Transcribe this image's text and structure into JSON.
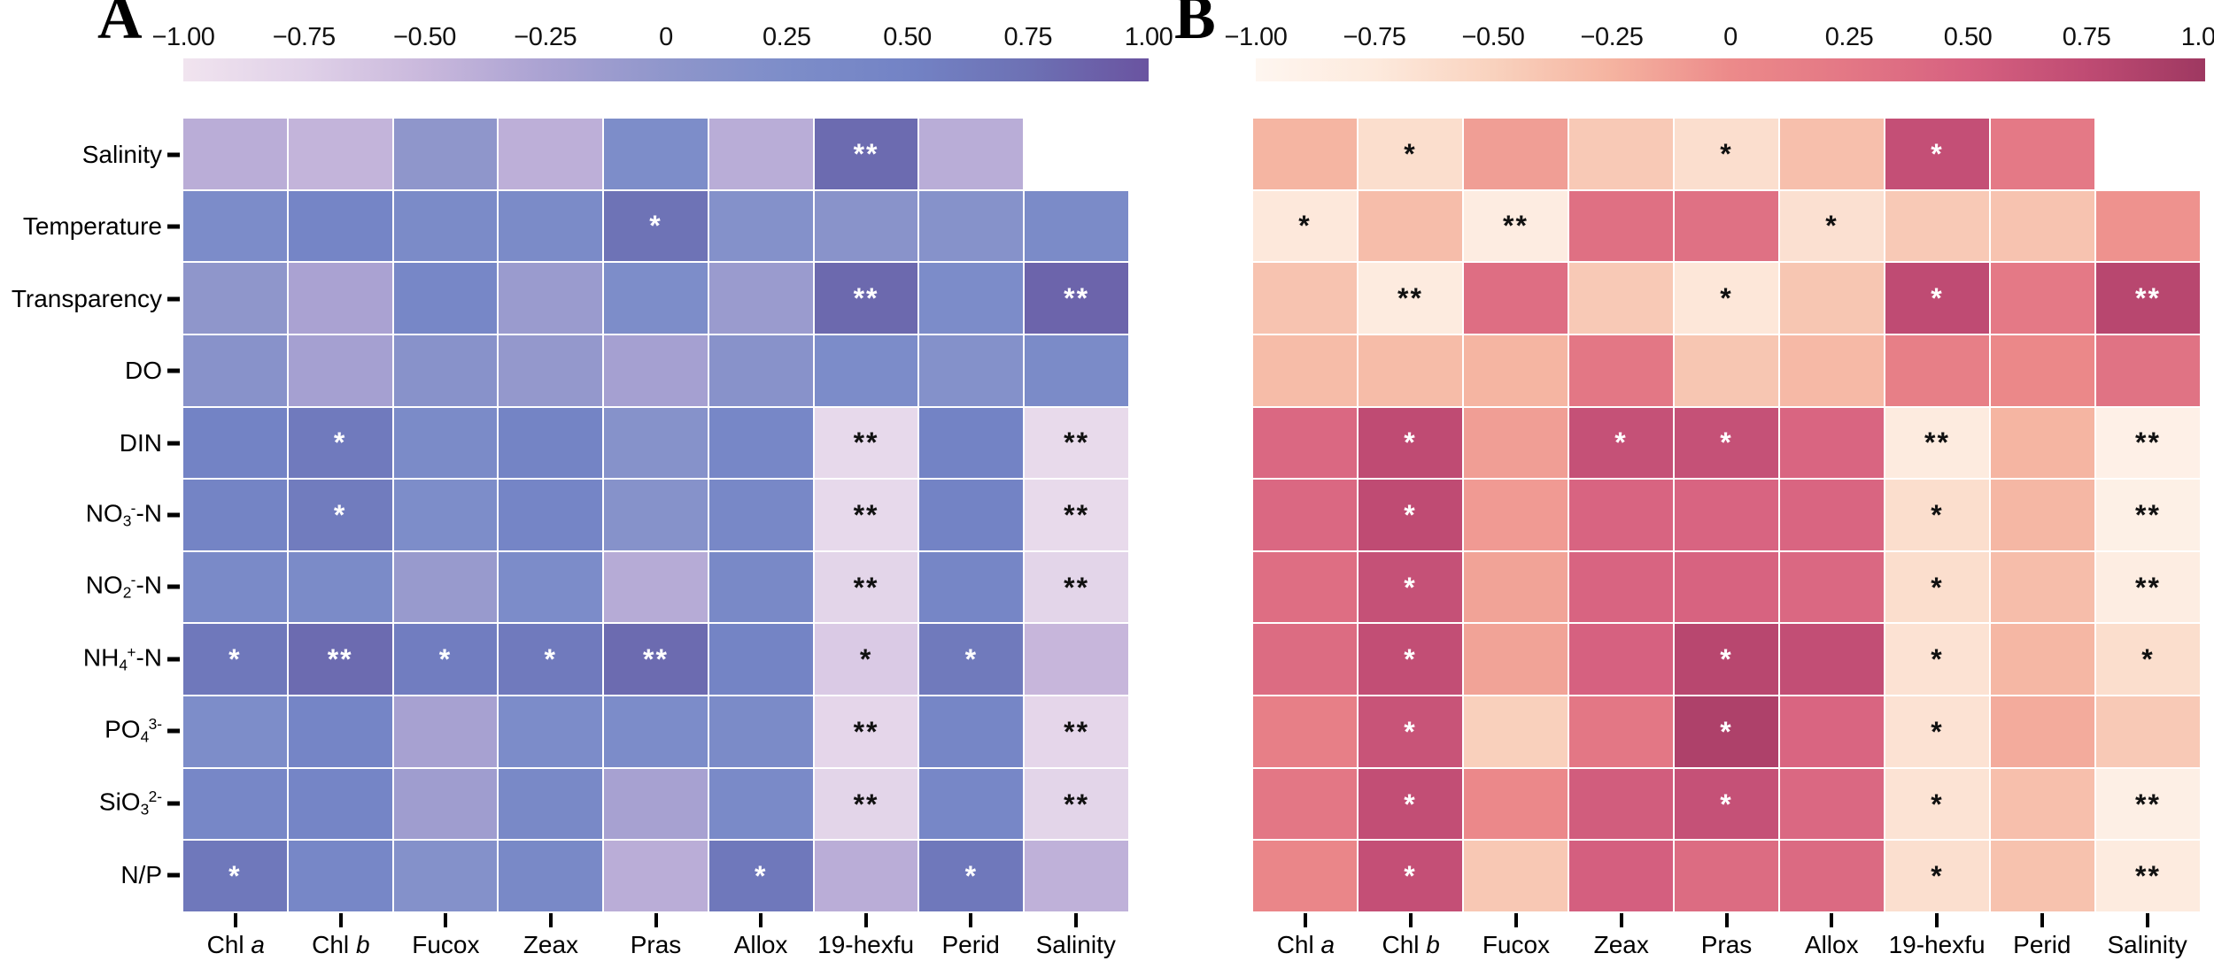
{
  "chart_data": [
    {
      "type": "heatmap",
      "panel_label": "A",
      "x_categories": [
        "Chl a",
        "Chl b",
        "Fucox",
        "Zeax",
        "Pras",
        "Allox",
        "19-hexfu",
        "Perid",
        "Salinity"
      ],
      "y_categories": [
        "Salinity",
        "Temperature",
        "Transparency",
        "DO",
        "DIN",
        "NO3--N",
        "NO2--N",
        "NH4+-N",
        "PO43-",
        "SiO32-",
        "N/P"
      ],
      "x_label_parts": [
        [
          [
            "Chl ",
            ""
          ],
          [
            "a",
            "i"
          ]
        ],
        [
          [
            "Chl ",
            ""
          ],
          [
            "b",
            "i"
          ]
        ],
        [
          [
            "Fucox",
            ""
          ]
        ],
        [
          [
            "Zeax",
            ""
          ]
        ],
        [
          [
            "Pras",
            ""
          ]
        ],
        [
          [
            "Allox",
            ""
          ]
        ],
        [
          [
            "19-hexfu",
            ""
          ]
        ],
        [
          [
            "Perid",
            ""
          ]
        ],
        [
          [
            "Salinity",
            ""
          ]
        ]
      ],
      "y_label_parts": [
        [
          [
            "Salinity",
            ""
          ]
        ],
        [
          [
            "Temperature",
            ""
          ]
        ],
        [
          [
            "Transparency",
            ""
          ]
        ],
        [
          [
            "DO",
            ""
          ]
        ],
        [
          [
            "DIN",
            ""
          ]
        ],
        [
          [
            "NO",
            ""
          ],
          [
            "3",
            "sub"
          ],
          [
            "-",
            "sup"
          ],
          [
            "-N",
            ""
          ]
        ],
        [
          [
            "NO",
            ""
          ],
          [
            "2",
            "sub"
          ],
          [
            "-",
            "sup"
          ],
          [
            "-N",
            ""
          ]
        ],
        [
          [
            "NH",
            ""
          ],
          [
            "4",
            "sub"
          ],
          [
            "+",
            "sup"
          ],
          [
            "-N",
            ""
          ]
        ],
        [
          [
            "PO",
            ""
          ],
          [
            "4",
            "sub"
          ],
          [
            "3-",
            "sup"
          ]
        ],
        [
          [
            "SiO",
            ""
          ],
          [
            "3",
            "sub"
          ],
          [
            "2-",
            "sup"
          ]
        ],
        [
          [
            "N/P",
            ""
          ]
        ]
      ],
      "value_range": [
        -1,
        1
      ],
      "colorbar_ticks": [
        "−1.00",
        "−0.75",
        "−0.50",
        "−0.25",
        "0",
        "0.25",
        "0.50",
        "0.75",
        "1.00"
      ],
      "colormap_stops": [
        [
          -1.0,
          "#f1e4ef"
        ],
        [
          -0.75,
          "#e0d1e8"
        ],
        [
          -0.5,
          "#c9b8dc"
        ],
        [
          -0.25,
          "#aaa2d2"
        ],
        [
          0.0,
          "#8f96cb"
        ],
        [
          0.25,
          "#7d8dc9"
        ],
        [
          0.5,
          "#7383c5"
        ],
        [
          0.75,
          "#6d71b4"
        ],
        [
          1.0,
          "#6a53a0"
        ]
      ],
      "values": [
        [
          -0.38,
          -0.45,
          0.0,
          -0.4,
          0.25,
          -0.37,
          0.8,
          -0.37,
          null
        ],
        [
          0.28,
          0.45,
          0.3,
          0.3,
          0.72,
          0.15,
          0.08,
          0.12,
          0.3
        ],
        [
          0.0,
          -0.25,
          0.4,
          -0.1,
          0.25,
          -0.1,
          0.82,
          0.28,
          0.86
        ],
        [
          0.1,
          -0.2,
          0.1,
          -0.05,
          -0.2,
          0.1,
          0.28,
          0.15,
          0.3
        ],
        [
          0.5,
          0.62,
          0.3,
          0.48,
          0.12,
          0.4,
          -0.85,
          0.5,
          -0.87
        ],
        [
          0.48,
          0.6,
          0.25,
          0.45,
          0.12,
          0.38,
          -0.85,
          0.5,
          -0.87
        ],
        [
          0.32,
          0.3,
          -0.08,
          0.28,
          -0.35,
          0.35,
          -0.8,
          0.42,
          -0.8
        ],
        [
          0.65,
          0.8,
          0.58,
          0.62,
          0.8,
          0.47,
          -0.68,
          0.63,
          -0.48
        ],
        [
          0.25,
          0.45,
          -0.22,
          0.28,
          0.28,
          0.3,
          -0.82,
          0.42,
          -0.82
        ],
        [
          0.4,
          0.44,
          -0.15,
          0.36,
          -0.22,
          0.33,
          -0.8,
          0.4,
          -0.8
        ],
        [
          0.65,
          0.4,
          0.15,
          0.35,
          -0.38,
          0.65,
          -0.38,
          0.65,
          -0.42
        ]
      ],
      "significance": [
        [
          "",
          "",
          "",
          "",
          "",
          "",
          "**",
          "",
          null
        ],
        [
          "",
          "",
          "",
          "",
          "*",
          "",
          "",
          "",
          ""
        ],
        [
          "",
          "",
          "",
          "",
          "",
          "",
          "**",
          "",
          "**"
        ],
        [
          "",
          "",
          "",
          "",
          "",
          "",
          "",
          "",
          ""
        ],
        [
          "",
          "*",
          "",
          "",
          "",
          "",
          "**",
          "",
          "**"
        ],
        [
          "",
          "*",
          "",
          "",
          "",
          "",
          "**",
          "",
          "**"
        ],
        [
          "",
          "",
          "",
          "",
          "",
          "",
          "**",
          "",
          "**"
        ],
        [
          "*",
          "**",
          "*",
          "*",
          "**",
          "",
          "*",
          "*",
          ""
        ],
        [
          "",
          "",
          "",
          "",
          "",
          "",
          "**",
          "",
          "**"
        ],
        [
          "",
          "",
          "",
          "",
          "",
          "",
          "**",
          "",
          "**"
        ],
        [
          "*",
          "",
          "",
          "",
          "",
          "*",
          "",
          "*",
          ""
        ]
      ]
    },
    {
      "type": "heatmap",
      "panel_label": "B",
      "x_categories": [
        "Chl a",
        "Chl b",
        "Fucox",
        "Zeax",
        "Pras",
        "Allox",
        "19-hexfu",
        "Perid",
        "Salinity"
      ],
      "y_categories": [
        "Salinity",
        "Temperature",
        "Transparency",
        "DO",
        "DIN",
        "NO3--N",
        "NO2--N",
        "NH4+-N",
        "PO43-",
        "SiO32-",
        "N/P"
      ],
      "x_label_parts": [
        [
          [
            "Chl ",
            ""
          ],
          [
            "a",
            "i"
          ]
        ],
        [
          [
            "Chl ",
            ""
          ],
          [
            "b",
            "i"
          ]
        ],
        [
          [
            "Fucox",
            ""
          ]
        ],
        [
          [
            "Zeax",
            ""
          ]
        ],
        [
          [
            "Pras",
            ""
          ]
        ],
        [
          [
            "Allox",
            ""
          ]
        ],
        [
          [
            "19-hexfu",
            ""
          ]
        ],
        [
          [
            "Perid",
            ""
          ]
        ],
        [
          [
            "Salinity",
            ""
          ]
        ]
      ],
      "y_label_parts": [],
      "value_range": [
        -1,
        1
      ],
      "colorbar_ticks": [
        "−1.00",
        "−0.75",
        "−0.50",
        "−0.25",
        "0",
        "0.25",
        "0.50",
        "0.75",
        "1.00"
      ],
      "colormap_stops": [
        [
          -1.0,
          "#fef6f0"
        ],
        [
          -0.75,
          "#fdeadd"
        ],
        [
          -0.5,
          "#f9d2be"
        ],
        [
          -0.25,
          "#f5b3a0"
        ],
        [
          0.0,
          "#ec8a8a"
        ],
        [
          0.25,
          "#e37785"
        ],
        [
          0.5,
          "#d66180"
        ],
        [
          0.75,
          "#bf4b73"
        ],
        [
          1.0,
          "#9e3861"
        ]
      ],
      "values": [
        [
          -0.27,
          -0.62,
          -0.12,
          -0.43,
          -0.63,
          -0.35,
          0.7,
          0.22,
          null
        ],
        [
          -0.73,
          -0.33,
          -0.8,
          0.33,
          0.32,
          -0.65,
          -0.43,
          -0.38,
          -0.05
        ],
        [
          -0.38,
          -0.78,
          0.35,
          -0.43,
          -0.72,
          -0.4,
          0.75,
          0.22,
          0.8
        ],
        [
          -0.32,
          -0.32,
          -0.27,
          0.25,
          -0.4,
          -0.3,
          0.15,
          0.03,
          0.3
        ],
        [
          0.42,
          0.75,
          -0.12,
          0.68,
          0.68,
          0.45,
          -0.78,
          -0.27,
          -0.88
        ],
        [
          0.42,
          0.75,
          -0.1,
          0.47,
          0.47,
          0.45,
          -0.62,
          -0.28,
          -0.87
        ],
        [
          0.35,
          0.68,
          -0.15,
          0.47,
          0.48,
          0.42,
          -0.62,
          -0.33,
          -0.82
        ],
        [
          0.38,
          0.72,
          -0.15,
          0.5,
          0.8,
          0.72,
          -0.67,
          -0.28,
          -0.62
        ],
        [
          0.15,
          0.65,
          -0.48,
          0.25,
          0.88,
          0.45,
          -0.67,
          -0.2,
          -0.43
        ],
        [
          0.25,
          0.72,
          0.02,
          0.55,
          0.68,
          0.42,
          -0.68,
          -0.35,
          -0.85
        ],
        [
          0.05,
          0.7,
          -0.42,
          0.52,
          0.38,
          0.4,
          -0.64,
          -0.37,
          -0.77
        ]
      ],
      "significance": [
        [
          "",
          "*",
          "",
          "",
          "*",
          "",
          "*",
          "",
          null
        ],
        [
          "*",
          "",
          "**",
          "",
          "",
          "*",
          "",
          "",
          ""
        ],
        [
          "",
          "**",
          "",
          "",
          "*",
          "",
          "*",
          "",
          "**"
        ],
        [
          "",
          "",
          "",
          "",
          "",
          "",
          "",
          "",
          ""
        ],
        [
          "",
          "*",
          "",
          "*",
          "*",
          "",
          "**",
          "",
          "**"
        ],
        [
          "",
          "*",
          "",
          "",
          "",
          "",
          "*",
          "",
          "**"
        ],
        [
          "",
          "*",
          "",
          "",
          "",
          "",
          "*",
          "",
          "**"
        ],
        [
          "",
          "*",
          "",
          "",
          "*",
          "",
          "*",
          "",
          "*"
        ],
        [
          "",
          "*",
          "",
          "",
          "*",
          "",
          "*",
          "",
          ""
        ],
        [
          "",
          "*",
          "",
          "",
          "*",
          "",
          "*",
          "",
          "**"
        ],
        [
          "",
          "*",
          "",
          "",
          "",
          "",
          "*",
          "",
          "**"
        ]
      ]
    }
  ]
}
